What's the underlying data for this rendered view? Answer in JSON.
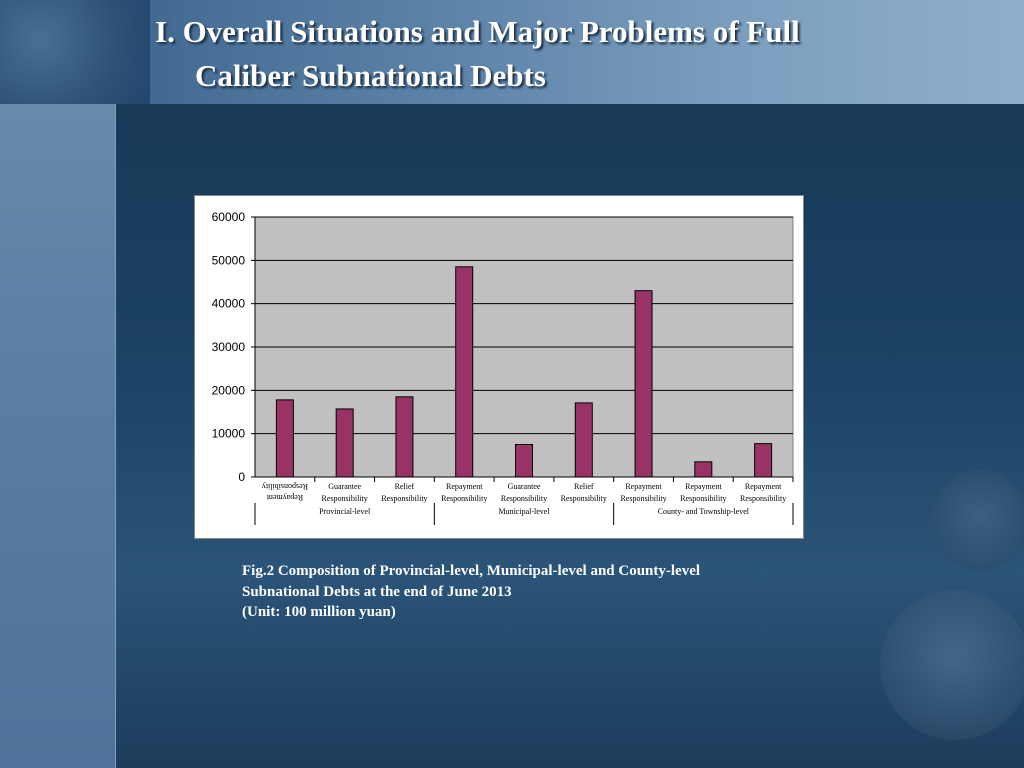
{
  "slide": {
    "title_line1": "I. Overall Situations and Major Problems of Full",
    "title_line2": "Caliber Subnational Debts"
  },
  "caption": {
    "line1": "Fig.2 Composition of Provincial-level, Municipal-level and County-level",
    "line2": "Subnational Debts at the end of June 2013",
    "line3": "(Unit: 100 million yuan)"
  },
  "colors": {
    "bar": "#993366",
    "plot_bg": "#c0c0c0",
    "gridline": "#000000"
  },
  "chart_data": {
    "type": "bar",
    "categories": [
      [
        "Repayment",
        "Responsibility"
      ],
      [
        "Guarantee",
        "Responsibility"
      ],
      [
        "Relief",
        "Responsibility"
      ],
      [
        "Repayment",
        "Responsibility"
      ],
      [
        "Guarantee",
        "Responsibility"
      ],
      [
        "Relief",
        "Responsibility"
      ],
      [
        "Repayment",
        "Responsibility"
      ],
      [
        "Repayment",
        "Responsibility"
      ],
      [
        "Repayment",
        "Responsibility"
      ]
    ],
    "values": [
      17800,
      15700,
      18500,
      48500,
      7500,
      17100,
      43000,
      3500,
      7700
    ],
    "groups": [
      {
        "label": "Provincial-level",
        "start": 0,
        "end": 3
      },
      {
        "label": "Municipal-level",
        "start": 3,
        "end": 6
      },
      {
        "label": "County- and Township-level",
        "start": 6,
        "end": 9
      }
    ],
    "ylim": [
      0,
      60000
    ],
    "yticks": [
      "0",
      "10000",
      "20000",
      "30000",
      "40000",
      "50000",
      "60000"
    ],
    "grid": true,
    "legend": "none"
  }
}
